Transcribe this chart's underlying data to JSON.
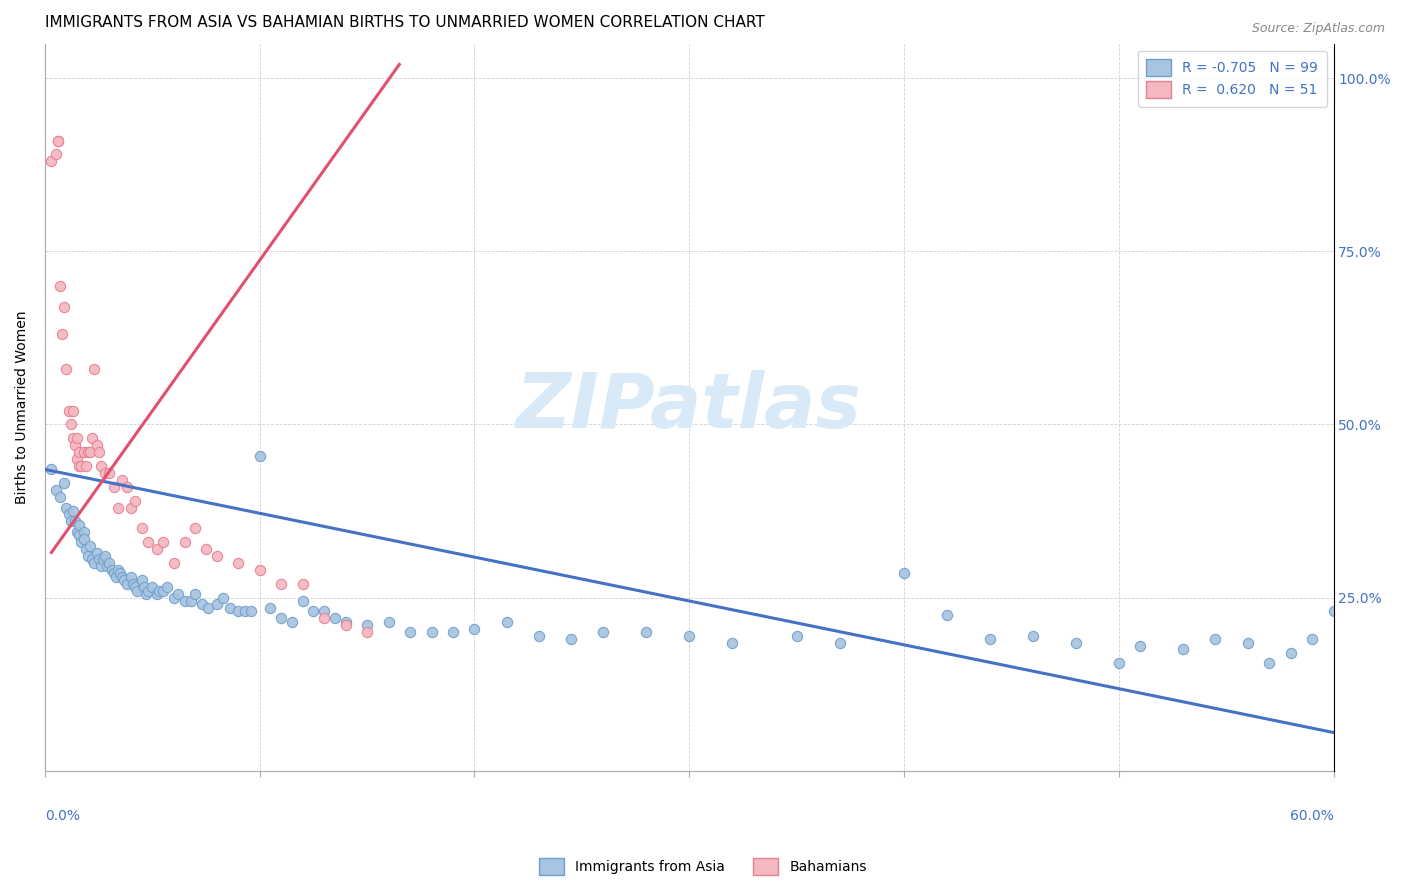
{
  "title": "IMMIGRANTS FROM ASIA VS BAHAMIAN BIRTHS TO UNMARRIED WOMEN CORRELATION CHART",
  "source": "Source: ZipAtlas.com",
  "ylabel": "Births to Unmarried Women",
  "xlim": [
    0.0,
    0.6
  ],
  "ylim": [
    0.0,
    1.05
  ],
  "right_yticks": [
    0.0,
    0.25,
    0.5,
    0.75,
    1.0
  ],
  "right_yticklabels": [
    "",
    "25.0%",
    "50.0%",
    "75.0%",
    "100.0%"
  ],
  "blue_color": "#a8c4e0",
  "blue_edge": "#6fa0cc",
  "pink_color": "#f4b8c1",
  "pink_edge": "#e87f92",
  "blue_line_color": "#4472c4",
  "pink_line_color": "#e05070",
  "watermark": "ZIPatlas",
  "watermark_color": "#d8eaf8",
  "background_color": "#ffffff",
  "grid_color": "#cccccc",
  "title_fontsize": 11,
  "axis_label_fontsize": 10,
  "tick_fontsize": 10,
  "legend_fontsize": 10,
  "source_fontsize": 9,
  "dot_size": 55,
  "blue_line_x": [
    0.0,
    0.6
  ],
  "blue_line_y": [
    0.435,
    0.055
  ],
  "pink_line_x": [
    0.003,
    0.165
  ],
  "pink_line_y": [
    0.315,
    1.02
  ],
  "blue_x": [
    0.003,
    0.005,
    0.007,
    0.009,
    0.01,
    0.011,
    0.012,
    0.013,
    0.014,
    0.015,
    0.016,
    0.016,
    0.017,
    0.018,
    0.018,
    0.019,
    0.02,
    0.021,
    0.022,
    0.023,
    0.024,
    0.025,
    0.026,
    0.027,
    0.028,
    0.029,
    0.03,
    0.031,
    0.032,
    0.033,
    0.034,
    0.035,
    0.036,
    0.037,
    0.038,
    0.04,
    0.041,
    0.042,
    0.043,
    0.045,
    0.046,
    0.047,
    0.048,
    0.05,
    0.052,
    0.053,
    0.055,
    0.057,
    0.06,
    0.062,
    0.065,
    0.068,
    0.07,
    0.073,
    0.076,
    0.08,
    0.083,
    0.086,
    0.09,
    0.093,
    0.096,
    0.1,
    0.105,
    0.11,
    0.115,
    0.12,
    0.125,
    0.13,
    0.135,
    0.14,
    0.15,
    0.16,
    0.17,
    0.18,
    0.19,
    0.2,
    0.215,
    0.23,
    0.245,
    0.26,
    0.28,
    0.3,
    0.32,
    0.35,
    0.37,
    0.4,
    0.42,
    0.44,
    0.46,
    0.48,
    0.5,
    0.51,
    0.53,
    0.545,
    0.56,
    0.57,
    0.58,
    0.59,
    0.6
  ],
  "blue_y": [
    0.435,
    0.405,
    0.395,
    0.415,
    0.38,
    0.37,
    0.36,
    0.375,
    0.36,
    0.345,
    0.34,
    0.355,
    0.33,
    0.345,
    0.335,
    0.32,
    0.31,
    0.325,
    0.305,
    0.3,
    0.315,
    0.305,
    0.295,
    0.305,
    0.31,
    0.295,
    0.3,
    0.29,
    0.285,
    0.28,
    0.29,
    0.285,
    0.28,
    0.275,
    0.27,
    0.28,
    0.27,
    0.265,
    0.26,
    0.275,
    0.265,
    0.255,
    0.26,
    0.265,
    0.255,
    0.26,
    0.26,
    0.265,
    0.25,
    0.255,
    0.245,
    0.245,
    0.255,
    0.24,
    0.235,
    0.24,
    0.25,
    0.235,
    0.23,
    0.23,
    0.23,
    0.455,
    0.235,
    0.22,
    0.215,
    0.245,
    0.23,
    0.23,
    0.22,
    0.215,
    0.21,
    0.215,
    0.2,
    0.2,
    0.2,
    0.205,
    0.215,
    0.195,
    0.19,
    0.2,
    0.2,
    0.195,
    0.185,
    0.195,
    0.185,
    0.285,
    0.225,
    0.19,
    0.195,
    0.185,
    0.155,
    0.18,
    0.175,
    0.19,
    0.185,
    0.155,
    0.17,
    0.19,
    0.23
  ],
  "pink_x": [
    0.003,
    0.005,
    0.006,
    0.006,
    0.007,
    0.008,
    0.009,
    0.01,
    0.011,
    0.012,
    0.013,
    0.013,
    0.014,
    0.015,
    0.015,
    0.016,
    0.016,
    0.017,
    0.018,
    0.019,
    0.02,
    0.021,
    0.022,
    0.023,
    0.024,
    0.025,
    0.026,
    0.028,
    0.03,
    0.032,
    0.034,
    0.036,
    0.038,
    0.04,
    0.042,
    0.045,
    0.048,
    0.052,
    0.055,
    0.06,
    0.065,
    0.07,
    0.075,
    0.08,
    0.09,
    0.1,
    0.11,
    0.12,
    0.13,
    0.14,
    0.15
  ],
  "pink_y": [
    0.88,
    0.89,
    0.91,
    0.91,
    0.7,
    0.63,
    0.67,
    0.58,
    0.52,
    0.5,
    0.48,
    0.52,
    0.47,
    0.45,
    0.48,
    0.44,
    0.46,
    0.44,
    0.46,
    0.44,
    0.46,
    0.46,
    0.48,
    0.58,
    0.47,
    0.46,
    0.44,
    0.43,
    0.43,
    0.41,
    0.38,
    0.42,
    0.41,
    0.38,
    0.39,
    0.35,
    0.33,
    0.32,
    0.33,
    0.3,
    0.33,
    0.35,
    0.32,
    0.31,
    0.3,
    0.29,
    0.27,
    0.27,
    0.22,
    0.21,
    0.2
  ]
}
